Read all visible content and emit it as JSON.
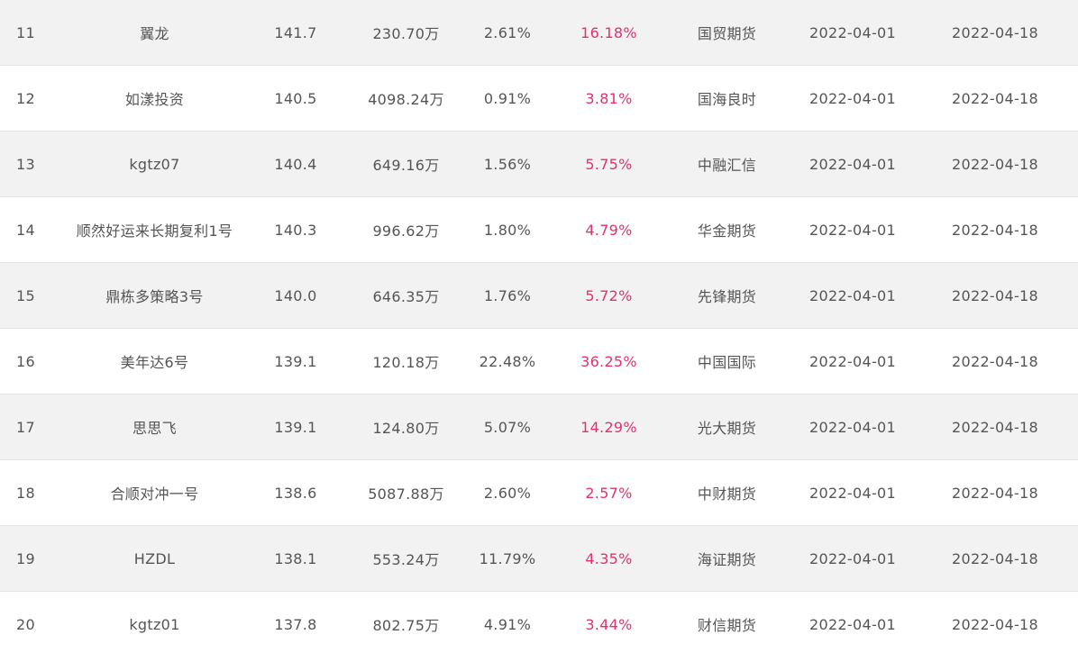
{
  "rows": [
    {
      "rank": "11",
      "name": "翼龙",
      "score": "141.7",
      "scale": "230.70万",
      "drawdown": "2.61%",
      "return": "16.18%",
      "broker": "国贸期货",
      "start": "2022-04-01",
      "end": "2022-04-18"
    },
    {
      "rank": "12",
      "name": "如漾投资",
      "score": "140.5",
      "scale": "4098.24万",
      "drawdown": "0.91%",
      "return": "3.81%",
      "broker": "国海良时",
      "start": "2022-04-01",
      "end": "2022-04-18"
    },
    {
      "rank": "13",
      "name": "kgtz07",
      "score": "140.4",
      "scale": "649.16万",
      "drawdown": "1.56%",
      "return": "5.75%",
      "broker": "中融汇信",
      "start": "2022-04-01",
      "end": "2022-04-18"
    },
    {
      "rank": "14",
      "name": "顺然好运来长期复利1号",
      "score": "140.3",
      "scale": "996.62万",
      "drawdown": "1.80%",
      "return": "4.79%",
      "broker": "华金期货",
      "start": "2022-04-01",
      "end": "2022-04-18"
    },
    {
      "rank": "15",
      "name": "鼎栋多策略3号",
      "score": "140.0",
      "scale": "646.35万",
      "drawdown": "1.76%",
      "return": "5.72%",
      "broker": "先锋期货",
      "start": "2022-04-01",
      "end": "2022-04-18"
    },
    {
      "rank": "16",
      "name": "美年达6号",
      "score": "139.1",
      "scale": "120.18万",
      "drawdown": "22.48%",
      "return": "36.25%",
      "broker": "中国国际",
      "start": "2022-04-01",
      "end": "2022-04-18"
    },
    {
      "rank": "17",
      "name": "思思飞",
      "score": "139.1",
      "scale": "124.80万",
      "drawdown": "5.07%",
      "return": "14.29%",
      "broker": "光大期货",
      "start": "2022-04-01",
      "end": "2022-04-18"
    },
    {
      "rank": "18",
      "name": "合顺对冲一号",
      "score": "138.6",
      "scale": "5087.88万",
      "drawdown": "2.60%",
      "return": "2.57%",
      "broker": "中财期货",
      "start": "2022-04-01",
      "end": "2022-04-18"
    },
    {
      "rank": "19",
      "name": "HZDL",
      "score": "138.1",
      "scale": "553.24万",
      "drawdown": "11.79%",
      "return": "4.35%",
      "broker": "海证期货",
      "start": "2022-04-01",
      "end": "2022-04-18"
    },
    {
      "rank": "20",
      "name": "kgtz01",
      "score": "137.8",
      "scale": "802.75万",
      "drawdown": "4.91%",
      "return": "3.44%",
      "broker": "财信期货",
      "start": "2022-04-01",
      "end": "2022-04-18"
    }
  ],
  "colors": {
    "row_even": "#f2f2f2",
    "row_odd": "#ffffff",
    "text": "#555555",
    "return_accent": "#e4306f",
    "divider": "#e3e3e3"
  }
}
